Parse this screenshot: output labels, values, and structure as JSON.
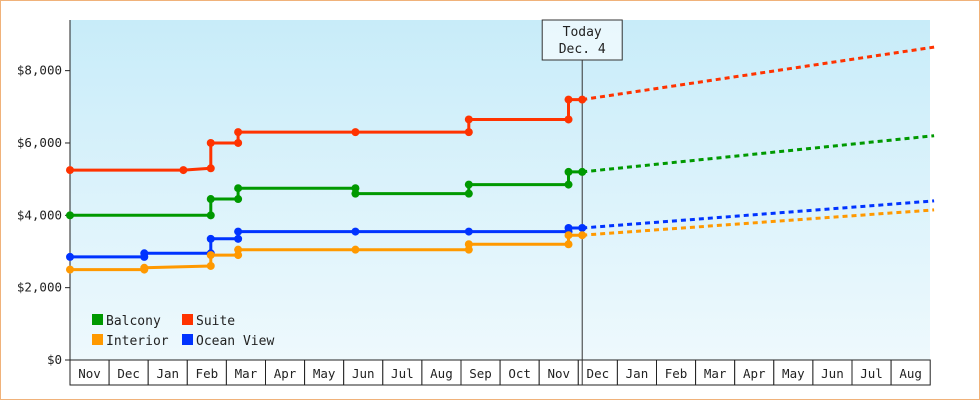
{
  "chart_data": {
    "type": "line",
    "title": "",
    "xlabel": "",
    "ylabel": "",
    "ylim": [
      0,
      9400
    ],
    "y_ticks": [
      {
        "value": 0,
        "label": "$0"
      },
      {
        "value": 2000,
        "label": "$2,000"
      },
      {
        "value": 4000,
        "label": "$4,000"
      },
      {
        "value": 6000,
        "label": "$6,000"
      },
      {
        "value": 8000,
        "label": "$8,000"
      }
    ],
    "x_ticks": [
      "Nov",
      "Dec",
      "Jan",
      "Feb",
      "Mar",
      "Apr",
      "May",
      "Jun",
      "Jul",
      "Aug",
      "Sep",
      "Oct",
      "Nov",
      "Dec",
      "Jan",
      "Feb",
      "Mar",
      "Apr",
      "May",
      "Jun",
      "Jul",
      "Aug"
    ],
    "today": {
      "label_line1": "Today",
      "label_line2": "Dec. 4",
      "x": 13.1
    },
    "grid": false,
    "background": "light-blue-gradient",
    "legend_position": "bottom-left",
    "series": [
      {
        "name": "Suite",
        "color": "#ff3300",
        "points": [
          [
            0,
            5250
          ],
          [
            2.9,
            5250
          ],
          [
            3.6,
            5300
          ],
          [
            3.6,
            6000
          ],
          [
            4.3,
            6000
          ],
          [
            4.3,
            6300
          ],
          [
            7.3,
            6300
          ],
          [
            10.2,
            6300
          ],
          [
            10.2,
            6650
          ],
          [
            12.75,
            6650
          ],
          [
            12.75,
            7200
          ],
          [
            13.1,
            7200
          ]
        ],
        "projection": [
          [
            13.1,
            7200
          ],
          [
            22.1,
            8650
          ]
        ]
      },
      {
        "name": "Balcony",
        "color": "#009900",
        "points": [
          [
            0,
            4000
          ],
          [
            3.6,
            4000
          ],
          [
            3.6,
            4450
          ],
          [
            4.3,
            4450
          ],
          [
            4.3,
            4750
          ],
          [
            7.3,
            4750
          ],
          [
            7.3,
            4600
          ],
          [
            10.2,
            4600
          ],
          [
            10.2,
            4850
          ],
          [
            12.75,
            4850
          ],
          [
            12.75,
            5200
          ],
          [
            13.1,
            5200
          ]
        ],
        "projection": [
          [
            13.1,
            5200
          ],
          [
            22.1,
            6200
          ]
        ]
      },
      {
        "name": "Ocean View",
        "color": "#0033ff",
        "points": [
          [
            0,
            2850
          ],
          [
            1.9,
            2850
          ],
          [
            1.9,
            2950
          ],
          [
            3.6,
            2950
          ],
          [
            3.6,
            3350
          ],
          [
            4.3,
            3350
          ],
          [
            4.3,
            3550
          ],
          [
            7.3,
            3550
          ],
          [
            10.2,
            3550
          ],
          [
            12.75,
            3550
          ],
          [
            12.75,
            3650
          ],
          [
            13.1,
            3650
          ]
        ],
        "projection": [
          [
            13.1,
            3650
          ],
          [
            22.1,
            4400
          ]
        ]
      },
      {
        "name": "Interior",
        "color": "#ff9900",
        "points": [
          [
            0,
            2500
          ],
          [
            1.9,
            2500
          ],
          [
            1.9,
            2550
          ],
          [
            3.6,
            2600
          ],
          [
            3.6,
            2900
          ],
          [
            4.3,
            2900
          ],
          [
            4.3,
            3050
          ],
          [
            7.3,
            3050
          ],
          [
            10.2,
            3050
          ],
          [
            10.2,
            3200
          ],
          [
            12.75,
            3200
          ],
          [
            12.75,
            3450
          ],
          [
            13.1,
            3450
          ]
        ],
        "projection": [
          [
            13.1,
            3450
          ],
          [
            22.1,
            4150
          ]
        ]
      }
    ],
    "legend": [
      {
        "name": "Balcony",
        "color": "#009900"
      },
      {
        "name": "Suite",
        "color": "#ff3300"
      },
      {
        "name": "Interior",
        "color": "#ff9900"
      },
      {
        "name": "Ocean View",
        "color": "#0033ff"
      }
    ]
  }
}
